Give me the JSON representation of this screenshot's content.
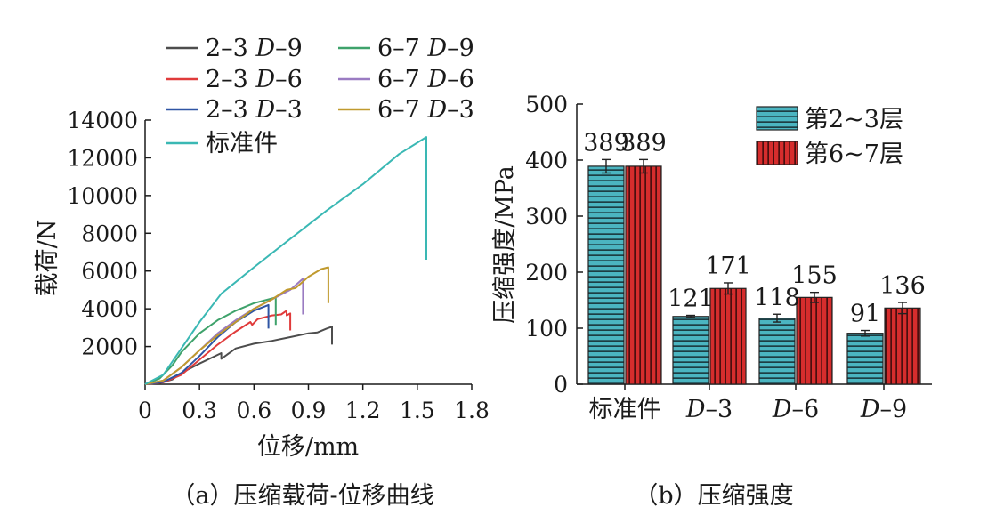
{
  "chart_data": [
    {
      "type": "line",
      "caption": "（a）压缩载荷-位移曲线",
      "xlabel": "位移/mm",
      "ylabel": "载荷/N",
      "xlim": [
        0,
        1.8
      ],
      "ylim": [
        0,
        14000
      ],
      "xticks": [
        "0",
        "0.3",
        "0.6",
        "0.9",
        "1.2",
        "1.5",
        "1.8"
      ],
      "yticks": [
        "2000",
        "4000",
        "6000",
        "8000",
        "10000",
        "12000",
        "14000"
      ],
      "legend_position": "top",
      "series": [
        {
          "name": "2–3 D–9",
          "prefix": "2–3 ",
          "letter": "D",
          "suffix": "–9",
          "color": "#4d4d4d",
          "points": [
            [
              0,
              0
            ],
            [
              0.08,
              60
            ],
            [
              0.15,
              250
            ],
            [
              0.2,
              600
            ],
            [
              0.3,
              1100
            ],
            [
              0.42,
              1650
            ],
            [
              0.42,
              1350
            ],
            [
              0.5,
              1900
            ],
            [
              0.6,
              2150
            ],
            [
              0.7,
              2300
            ],
            [
              0.8,
              2500
            ],
            [
              0.9,
              2700
            ],
            [
              0.95,
              2750
            ],
            [
              1.0,
              2950
            ],
            [
              1.03,
              3050
            ],
            [
              1.03,
              2100
            ]
          ]
        },
        {
          "name": "2–3 D–6",
          "prefix": "2–3 ",
          "letter": "D",
          "suffix": "–6",
          "color": "#e03b3b",
          "points": [
            [
              0,
              0
            ],
            [
              0.1,
              100
            ],
            [
              0.2,
              500
            ],
            [
              0.3,
              1300
            ],
            [
              0.4,
              2100
            ],
            [
              0.5,
              2800
            ],
            [
              0.58,
              3300
            ],
            [
              0.59,
              3150
            ],
            [
              0.62,
              3450
            ],
            [
              0.7,
              3650
            ],
            [
              0.75,
              3700
            ],
            [
              0.78,
              3900
            ],
            [
              0.78,
              3650
            ],
            [
              0.8,
              3750
            ],
            [
              0.8,
              2850
            ]
          ]
        },
        {
          "name": "2–3 D–3",
          "prefix": "2–3 ",
          "letter": "D",
          "suffix": "–3",
          "color": "#2f55a4",
          "points": [
            [
              0,
              0
            ],
            [
              0.1,
              120
            ],
            [
              0.2,
              600
            ],
            [
              0.3,
              1500
            ],
            [
              0.4,
              2500
            ],
            [
              0.5,
              3300
            ],
            [
              0.6,
              3900
            ],
            [
              0.68,
              4200
            ],
            [
              0.68,
              2950
            ]
          ]
        },
        {
          "name": "6–7 D–9",
          "prefix": "6–7 ",
          "letter": "D",
          "suffix": "–9",
          "color": "#3ea26b",
          "points": [
            [
              0,
              0
            ],
            [
              0.08,
              300
            ],
            [
              0.15,
              1000
            ],
            [
              0.2,
              1700
            ],
            [
              0.3,
              2700
            ],
            [
              0.4,
              3400
            ],
            [
              0.5,
              3900
            ],
            [
              0.6,
              4300
            ],
            [
              0.7,
              4550
            ],
            [
              0.72,
              4600
            ],
            [
              0.72,
              3150
            ]
          ]
        },
        {
          "name": "6–7 D–6",
          "prefix": "6–7 ",
          "letter": "D",
          "suffix": "–6",
          "color": "#9a7bc2",
          "points": [
            [
              0,
              0
            ],
            [
              0.1,
              200
            ],
            [
              0.2,
              900
            ],
            [
              0.3,
              1800
            ],
            [
              0.4,
              2700
            ],
            [
              0.5,
              3400
            ],
            [
              0.6,
              4000
            ],
            [
              0.7,
              4500
            ],
            [
              0.8,
              5000
            ],
            [
              0.87,
              5600
            ],
            [
              0.87,
              3700
            ]
          ]
        },
        {
          "name": "6–7 D–3",
          "prefix": "6–7 ",
          "letter": "D",
          "suffix": "–3",
          "color": "#c09a2e",
          "points": [
            [
              0,
              0
            ],
            [
              0.1,
              200
            ],
            [
              0.2,
              900
            ],
            [
              0.3,
              1800
            ],
            [
              0.4,
              2600
            ],
            [
              0.5,
              3300
            ],
            [
              0.6,
              4000
            ],
            [
              0.7,
              4500
            ],
            [
              0.78,
              5000
            ],
            [
              0.83,
              5100
            ],
            [
              0.9,
              5700
            ],
            [
              0.97,
              6100
            ],
            [
              1.01,
              6200
            ],
            [
              1.01,
              4300
            ]
          ]
        },
        {
          "name": "标准件",
          "prefix": "标准件",
          "letter": "",
          "suffix": "",
          "color": "#3ab8b4",
          "points": [
            [
              0,
              0
            ],
            [
              0.1,
              500
            ],
            [
              0.2,
              1900
            ],
            [
              0.3,
              3300
            ],
            [
              0.42,
              4800
            ],
            [
              0.6,
              6200
            ],
            [
              0.8,
              7700
            ],
            [
              1.0,
              9200
            ],
            [
              1.2,
              10600
            ],
            [
              1.4,
              12200
            ],
            [
              1.5,
              12800
            ],
            [
              1.55,
              13100
            ],
            [
              1.55,
              6600
            ]
          ]
        }
      ]
    },
    {
      "type": "bar",
      "caption": "（b）压缩强度",
      "ylabel": "压缩强度/MPa",
      "ylim": [
        0,
        500
      ],
      "yticks": [
        "0",
        "100",
        "200",
        "300",
        "400",
        "500"
      ],
      "legend_position": "top-right",
      "categories": [
        {
          "name": "标准件",
          "letter": "",
          "suffix": ""
        },
        {
          "name": "D–3",
          "letter": "D",
          "suffix": "–3"
        },
        {
          "name": "D–6",
          "letter": "D",
          "suffix": "–6"
        },
        {
          "name": "D–9",
          "letter": "D",
          "suffix": "–9"
        }
      ],
      "series": [
        {
          "name": "第2~3层",
          "color": "#4bb5c1",
          "values": [
            389,
            121,
            118,
            91
          ],
          "errors": [
            12,
            2,
            7,
            5
          ]
        },
        {
          "name": "第6~7层",
          "color": "#d62d2d",
          "values": [
            389,
            171,
            155,
            136
          ],
          "errors": [
            12,
            10,
            9,
            10
          ]
        }
      ],
      "data_labels": [
        [
          "389",
          "121",
          "118",
          "91"
        ],
        [
          "389",
          "171",
          "155",
          "136"
        ]
      ]
    }
  ]
}
